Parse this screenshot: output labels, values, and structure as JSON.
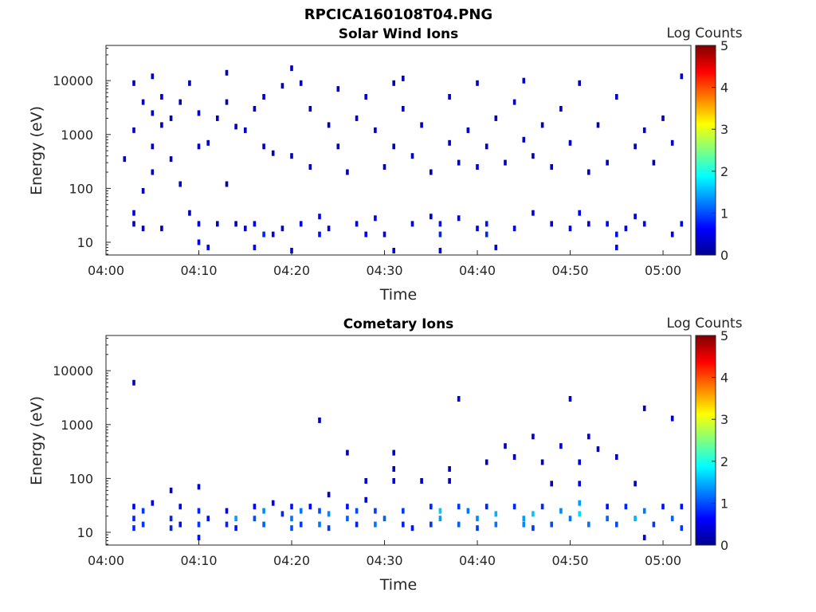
{
  "figure_title": "RPCICA160108T04.PNG",
  "chart_data": [
    {
      "type": "heatmap",
      "title": "Solar Wind Ions",
      "xlabel": "Time",
      "ylabel": "Energy (eV)",
      "yscale": "log",
      "xlim": [
        "04:00",
        "05:03"
      ],
      "ylim": [
        5.8,
        45000
      ],
      "xticks": [
        "04:00",
        "04:10",
        "04:20",
        "04:30",
        "04:40",
        "04:50",
        "05:00"
      ],
      "yticks": [
        "10",
        "100",
        "1000",
        "10000"
      ],
      "colorbar": {
        "label": "Log Counts",
        "range": [
          0,
          5
        ],
        "ticks": [
          "0",
          "1",
          "2",
          "3",
          "4",
          "5"
        ]
      },
      "points": [
        [
          "04:02",
          350,
          0.3
        ],
        [
          "04:03",
          1200,
          0.3
        ],
        [
          "04:03",
          9000,
          0.3
        ],
        [
          "04:03",
          35,
          0.4
        ],
        [
          "04:03",
          22,
          0.3
        ],
        [
          "04:04",
          4000,
          0.3
        ],
        [
          "04:04",
          90,
          0.3
        ],
        [
          "04:04",
          18,
          0.3
        ],
        [
          "04:05",
          2500,
          0.3
        ],
        [
          "04:05",
          12000,
          0.3
        ],
        [
          "04:05",
          600,
          0.3
        ],
        [
          "04:05",
          200,
          0.3
        ],
        [
          "04:06",
          18,
          0.3
        ],
        [
          "04:06",
          5000,
          0.3
        ],
        [
          "04:06",
          1500,
          0.3
        ],
        [
          "04:07",
          350,
          0.3
        ],
        [
          "04:07",
          2000,
          0.3
        ],
        [
          "04:08",
          120,
          0.3
        ],
        [
          "04:08",
          4000,
          0.3
        ],
        [
          "04:09",
          9000,
          0.3
        ],
        [
          "04:09",
          35,
          0.3
        ],
        [
          "04:10",
          600,
          0.3
        ],
        [
          "04:10",
          2500,
          0.3
        ],
        [
          "04:10",
          22,
          0.4
        ],
        [
          "04:10",
          10,
          0.5
        ],
        [
          "04:11",
          8,
          0.6
        ],
        [
          "04:11",
          700,
          0.3
        ],
        [
          "04:12",
          2000,
          0.3
        ],
        [
          "04:12",
          22,
          0.3
        ],
        [
          "04:13",
          4000,
          0.3
        ],
        [
          "04:13",
          120,
          0.3
        ],
        [
          "04:13",
          14000,
          0.3
        ],
        [
          "04:14",
          1400,
          0.3
        ],
        [
          "04:14",
          22,
          0.3
        ],
        [
          "04:15",
          1200,
          0.3
        ],
        [
          "04:15",
          18,
          0.4
        ],
        [
          "04:16",
          3000,
          0.3
        ],
        [
          "04:16",
          22,
          0.5
        ],
        [
          "04:16",
          8,
          0.6
        ],
        [
          "04:17",
          14,
          0.8
        ],
        [
          "04:17",
          5000,
          0.3
        ],
        [
          "04:17",
          600,
          0.3
        ],
        [
          "04:18",
          14,
          0.6
        ],
        [
          "04:18",
          450,
          0.3
        ],
        [
          "04:19",
          18,
          0.5
        ],
        [
          "04:19",
          8000,
          0.3
        ],
        [
          "04:20",
          7,
          0.5
        ],
        [
          "04:20",
          400,
          0.3
        ],
        [
          "04:20",
          17000,
          0.3
        ],
        [
          "04:21",
          22,
          0.5
        ],
        [
          "04:21",
          9000,
          0.3
        ],
        [
          "04:22",
          250,
          0.3
        ],
        [
          "04:22",
          3000,
          0.3
        ],
        [
          "04:23",
          14,
          0.7
        ],
        [
          "04:23",
          30,
          0.6
        ],
        [
          "04:24",
          18,
          0.5
        ],
        [
          "04:24",
          1500,
          0.3
        ],
        [
          "04:25",
          600,
          0.3
        ],
        [
          "04:25",
          7000,
          0.3
        ],
        [
          "04:26",
          200,
          0.3
        ],
        [
          "04:27",
          22,
          0.4
        ],
        [
          "04:27",
          2000,
          0.3
        ],
        [
          "04:28",
          14,
          0.6
        ],
        [
          "04:28",
          5000,
          0.3
        ],
        [
          "04:29",
          28,
          0.5
        ],
        [
          "04:29",
          1200,
          0.3
        ],
        [
          "04:30",
          14,
          0.6
        ],
        [
          "04:30",
          250,
          0.3
        ],
        [
          "04:31",
          9000,
          0.3
        ],
        [
          "04:31",
          7,
          0.5
        ],
        [
          "04:31",
          600,
          0.3
        ],
        [
          "04:32",
          3000,
          0.3
        ],
        [
          "04:32",
          11000,
          0.3
        ],
        [
          "04:33",
          22,
          0.4
        ],
        [
          "04:33",
          400,
          0.3
        ],
        [
          "04:34",
          1500,
          0.3
        ],
        [
          "04:35",
          30,
          0.4
        ],
        [
          "04:35",
          200,
          0.3
        ],
        [
          "04:36",
          22,
          0.7
        ],
        [
          "04:36",
          14,
          0.8
        ],
        [
          "04:36",
          7,
          0.6
        ],
        [
          "04:37",
          5000,
          0.3
        ],
        [
          "04:37",
          700,
          0.3
        ],
        [
          "04:38",
          28,
          0.4
        ],
        [
          "04:38",
          300,
          0.3
        ],
        [
          "04:39",
          1200,
          0.3
        ],
        [
          "04:40",
          18,
          0.5
        ],
        [
          "04:40",
          9000,
          0.3
        ],
        [
          "04:40",
          250,
          0.4
        ],
        [
          "04:41",
          14,
          0.8
        ],
        [
          "04:41",
          22,
          0.7
        ],
        [
          "04:41",
          600,
          0.3
        ],
        [
          "04:42",
          2000,
          0.3
        ],
        [
          "04:42",
          8,
          0.5
        ],
        [
          "04:43",
          300,
          0.3
        ],
        [
          "04:44",
          4000,
          0.3
        ],
        [
          "04:44",
          18,
          0.5
        ],
        [
          "04:45",
          10000,
          0.3
        ],
        [
          "04:45",
          800,
          0.3
        ],
        [
          "04:46",
          35,
          0.5
        ],
        [
          "04:46",
          400,
          0.3
        ],
        [
          "04:47",
          1500,
          0.3
        ],
        [
          "04:48",
          22,
          0.4
        ],
        [
          "04:48",
          250,
          0.3
        ],
        [
          "04:49",
          3000,
          0.3
        ],
        [
          "04:50",
          18,
          0.5
        ],
        [
          "04:50",
          700,
          0.3
        ],
        [
          "04:51",
          35,
          0.6
        ],
        [
          "04:51",
          9000,
          0.3
        ],
        [
          "04:52",
          22,
          0.4
        ],
        [
          "04:52",
          200,
          0.3
        ],
        [
          "04:53",
          1500,
          0.3
        ],
        [
          "04:54",
          22,
          0.6
        ],
        [
          "04:54",
          300,
          0.3
        ],
        [
          "04:55",
          14,
          0.7
        ],
        [
          "04:55",
          8,
          0.6
        ],
        [
          "04:55",
          5000,
          0.3
        ],
        [
          "04:56",
          18,
          0.5
        ],
        [
          "04:57",
          600,
          0.3
        ],
        [
          "04:57",
          30,
          0.4
        ],
        [
          "04:58",
          22,
          0.6
        ],
        [
          "04:58",
          1200,
          0.3
        ],
        [
          "04:59",
          300,
          0.3
        ],
        [
          "05:00",
          2000,
          0.3
        ],
        [
          "05:01",
          14,
          0.4
        ],
        [
          "05:01",
          700,
          0.3
        ],
        [
          "05:02",
          22,
          0.5
        ],
        [
          "05:02",
          12000,
          0.3
        ]
      ]
    },
    {
      "type": "heatmap",
      "title": "Cometary Ions",
      "xlabel": "Time",
      "ylabel": "Energy (eV)",
      "yscale": "log",
      "xlim": [
        "04:00",
        "05:03"
      ],
      "ylim": [
        5.8,
        45000
      ],
      "xticks": [
        "04:00",
        "04:10",
        "04:20",
        "04:30",
        "04:40",
        "04:50",
        "05:00"
      ],
      "yticks": [
        "10",
        "100",
        "1000",
        "10000"
      ],
      "colorbar": {
        "label": "Log Counts",
        "range": [
          0,
          5
        ],
        "ticks": [
          "0",
          "1",
          "2",
          "3",
          "4",
          "5"
        ]
      },
      "points": [
        [
          "04:03",
          6000,
          0.3
        ],
        [
          "04:03",
          30,
          0.6
        ],
        [
          "04:03",
          18,
          0.8
        ],
        [
          "04:03",
          12,
          0.8
        ],
        [
          "04:04",
          25,
          0.9
        ],
        [
          "04:04",
          14,
          0.9
        ],
        [
          "04:05",
          35,
          0.5
        ],
        [
          "04:07",
          60,
          0.4
        ],
        [
          "04:07",
          18,
          0.8
        ],
        [
          "04:07",
          12,
          0.8
        ],
        [
          "04:08",
          30,
          0.5
        ],
        [
          "04:08",
          14,
          0.7
        ],
        [
          "04:10",
          70,
          0.4
        ],
        [
          "04:10",
          25,
          0.8
        ],
        [
          "04:10",
          14,
          0.9
        ],
        [
          "04:10",
          8,
          0.7
        ],
        [
          "04:11",
          18,
          0.7
        ],
        [
          "04:13",
          25,
          0.6
        ],
        [
          "04:13",
          14,
          0.8
        ],
        [
          "04:14",
          18,
          1.4
        ],
        [
          "04:14",
          12,
          0.7
        ],
        [
          "04:16",
          30,
          0.6
        ],
        [
          "04:16",
          18,
          1.0
        ],
        [
          "04:17",
          25,
          1.3
        ],
        [
          "04:17",
          14,
          1.1
        ],
        [
          "04:18",
          35,
          0.6
        ],
        [
          "04:19",
          22,
          0.8
        ],
        [
          "04:20",
          30,
          0.7
        ],
        [
          "04:20",
          18,
          1.2
        ],
        [
          "04:20",
          12,
          1.0
        ],
        [
          "04:21",
          25,
          1.2
        ],
        [
          "04:21",
          14,
          0.9
        ],
        [
          "04:22",
          30,
          0.6
        ],
        [
          "04:23",
          1200,
          0.3
        ],
        [
          "04:23",
          25,
          1.0
        ],
        [
          "04:23",
          14,
          1.2
        ],
        [
          "04:24",
          22,
          1.3
        ],
        [
          "04:24",
          12,
          0.9
        ],
        [
          "04:24",
          50,
          0.4
        ],
        [
          "04:26",
          300,
          0.3
        ],
        [
          "04:26",
          30,
          0.7
        ],
        [
          "04:26",
          18,
          1.1
        ],
        [
          "04:27",
          25,
          1.0
        ],
        [
          "04:27",
          14,
          0.8
        ],
        [
          "04:28",
          90,
          0.4
        ],
        [
          "04:28",
          40,
          0.4
        ],
        [
          "04:29",
          25,
          0.9
        ],
        [
          "04:29",
          14,
          1.2
        ],
        [
          "04:30",
          18,
          1.1
        ],
        [
          "04:31",
          300,
          0.4
        ],
        [
          "04:31",
          150,
          0.4
        ],
        [
          "04:31",
          90,
          0.5
        ],
        [
          "04:32",
          25,
          0.9
        ],
        [
          "04:32",
          14,
          0.8
        ],
        [
          "04:33",
          12,
          0.7
        ],
        [
          "04:34",
          90,
          0.3
        ],
        [
          "04:35",
          30,
          0.8
        ],
        [
          "04:35",
          14,
          0.9
        ],
        [
          "04:36",
          25,
          1.6
        ],
        [
          "04:36",
          18,
          1.4
        ],
        [
          "04:37",
          150,
          0.3
        ],
        [
          "04:37",
          90,
          0.3
        ],
        [
          "04:38",
          3000,
          0.3
        ],
        [
          "04:38",
          30,
          0.9
        ],
        [
          "04:38",
          14,
          1.1
        ],
        [
          "04:39",
          25,
          1.2
        ],
        [
          "04:40",
          18,
          1.3
        ],
        [
          "04:40",
          12,
          0.9
        ],
        [
          "04:41",
          200,
          0.3
        ],
        [
          "04:41",
          30,
          0.8
        ],
        [
          "04:42",
          22,
          1.5
        ],
        [
          "04:42",
          14,
          1.2
        ],
        [
          "04:43",
          400,
          0.3
        ],
        [
          "04:44",
          250,
          0.3
        ],
        [
          "04:44",
          30,
          0.8
        ],
        [
          "04:45",
          18,
          1.4
        ],
        [
          "04:45",
          14,
          1.3
        ],
        [
          "04:46",
          600,
          0.4
        ],
        [
          "04:46",
          22,
          1.6
        ],
        [
          "04:46",
          12,
          0.9
        ],
        [
          "04:47",
          200,
          0.3
        ],
        [
          "04:47",
          30,
          0.8
        ],
        [
          "04:48",
          80,
          0.3
        ],
        [
          "04:48",
          14,
          1.0
        ],
        [
          "04:49",
          400,
          0.4
        ],
        [
          "04:49",
          25,
          1.3
        ],
        [
          "04:50",
          3000,
          0.3
        ],
        [
          "04:50",
          18,
          1.2
        ],
        [
          "04:51",
          200,
          0.5
        ],
        [
          "04:51",
          80,
          0.5
        ],
        [
          "04:51",
          35,
          1.4
        ],
        [
          "04:51",
          22,
          1.7
        ],
        [
          "04:52",
          600,
          0.4
        ],
        [
          "04:52",
          14,
          1.2
        ],
        [
          "04:53",
          350,
          0.3
        ],
        [
          "04:54",
          30,
          0.7
        ],
        [
          "04:54",
          18,
          1.1
        ],
        [
          "04:55",
          250,
          0.3
        ],
        [
          "04:55",
          14,
          1.0
        ],
        [
          "04:56",
          30,
          0.8
        ],
        [
          "04:57",
          80,
          0.3
        ],
        [
          "04:57",
          18,
          1.5
        ],
        [
          "04:58",
          2000,
          0.3
        ],
        [
          "04:58",
          25,
          1.2
        ],
        [
          "04:58",
          8,
          0.6
        ],
        [
          "04:59",
          14,
          0.9
        ],
        [
          "05:00",
          30,
          0.7
        ],
        [
          "05:01",
          1300,
          0.3
        ],
        [
          "05:01",
          18,
          1.1
        ],
        [
          "05:02",
          12,
          0.9
        ],
        [
          "05:02",
          30,
          0.7
        ]
      ]
    }
  ]
}
